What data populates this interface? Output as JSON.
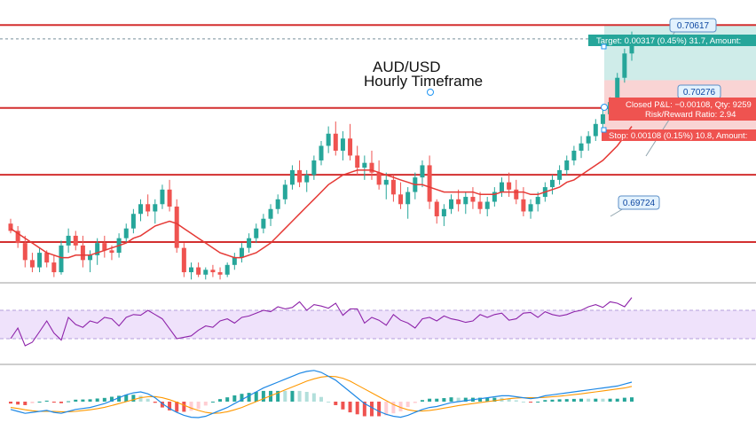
{
  "chart_data": [
    {
      "type": "candlestick",
      "title_line1": "AUD/USD",
      "title_line2": "Hourly Timeframe",
      "colors": {
        "up": "#26a69a",
        "down": "#ef5350",
        "sma": "#e53935",
        "level": "#d32f2f",
        "target_zone": "#bfe6e1",
        "stop_zone": "#f7c6c6"
      },
      "horizontal_levels": [
        0.70617,
        0.7056,
        0.70276,
        0.70001,
        0.69724
      ],
      "price_labels": [
        "0.70617",
        "0.70276",
        "0.69724"
      ],
      "position_tool": {
        "target_text": "Target: 0.00317 (0.45%) 31.7, Amount:",
        "closed_pl_text": "Closed P&L: −0.00108, Qty: 9259",
        "risk_reward_text": "Risk/Reward Ratio: 2.94",
        "stop_text": "Stop: 0.00108 (0.15%) 10.8, Amount:"
      },
      "candles": [
        [
          0.698,
          0.6982,
          0.6976,
          0.6977
        ],
        [
          0.6977,
          0.6979,
          0.697,
          0.6972
        ],
        [
          0.6972,
          0.6975,
          0.6962,
          0.6965
        ],
        [
          0.6965,
          0.6968,
          0.696,
          0.6962
        ],
        [
          0.6962,
          0.697,
          0.696,
          0.6968
        ],
        [
          0.6968,
          0.6969,
          0.6962,
          0.6964
        ],
        [
          0.6964,
          0.6967,
          0.6958,
          0.696
        ],
        [
          0.696,
          0.6973,
          0.6959,
          0.6971
        ],
        [
          0.6971,
          0.6978,
          0.6968,
          0.6975
        ],
        [
          0.6975,
          0.6977,
          0.6969,
          0.6971
        ],
        [
          0.6971,
          0.6975,
          0.6962,
          0.6965
        ],
        [
          0.6965,
          0.6969,
          0.696,
          0.6967
        ],
        [
          0.6967,
          0.6974,
          0.6963,
          0.6972
        ],
        [
          0.6972,
          0.6975,
          0.6966,
          0.6969
        ],
        [
          0.6969,
          0.6971,
          0.6965,
          0.6968
        ],
        [
          0.6968,
          0.6976,
          0.6966,
          0.6974
        ],
        [
          0.6974,
          0.698,
          0.6972,
          0.6978
        ],
        [
          0.6978,
          0.6986,
          0.6976,
          0.6984
        ],
        [
          0.6984,
          0.699,
          0.6981,
          0.6988
        ],
        [
          0.6988,
          0.6992,
          0.6983,
          0.6985
        ],
        [
          0.6985,
          0.699,
          0.698,
          0.6988
        ],
        [
          0.6988,
          0.6996,
          0.6986,
          0.6994
        ],
        [
          0.6994,
          0.6998,
          0.6985,
          0.6987
        ],
        [
          0.6987,
          0.699,
          0.6968,
          0.697
        ],
        [
          0.697,
          0.6972,
          0.6958,
          0.696
        ],
        [
          0.696,
          0.6964,
          0.6957,
          0.6962
        ],
        [
          0.6962,
          0.6964,
          0.6958,
          0.6959
        ],
        [
          0.6959,
          0.6962,
          0.6957,
          0.6961
        ],
        [
          0.6961,
          0.6963,
          0.6958,
          0.696
        ],
        [
          0.696,
          0.6962,
          0.6957,
          0.6959
        ],
        [
          0.6959,
          0.6964,
          0.6958,
          0.6963
        ],
        [
          0.6963,
          0.6968,
          0.6961,
          0.6966
        ],
        [
          0.6966,
          0.6972,
          0.6964,
          0.697
        ],
        [
          0.697,
          0.6976,
          0.6968,
          0.6974
        ],
        [
          0.6974,
          0.698,
          0.6972,
          0.6978
        ],
        [
          0.6978,
          0.6984,
          0.6976,
          0.6982
        ],
        [
          0.6982,
          0.6988,
          0.6979,
          0.6986
        ],
        [
          0.6986,
          0.6992,
          0.6984,
          0.699
        ],
        [
          0.699,
          0.6998,
          0.6988,
          0.6996
        ],
        [
          0.6996,
          0.7004,
          0.6994,
          0.7002
        ],
        [
          0.7002,
          0.7006,
          0.6995,
          0.6997
        ],
        [
          0.6997,
          0.7002,
          0.6993,
          0.7
        ],
        [
          0.7,
          0.7008,
          0.6998,
          0.7006
        ],
        [
          0.7006,
          0.7014,
          0.7004,
          0.7012
        ],
        [
          0.7012,
          0.702,
          0.7009,
          0.7017
        ],
        [
          0.7017,
          0.7022,
          0.7008,
          0.701
        ],
        [
          0.701,
          0.7018,
          0.7006,
          0.7015
        ],
        [
          0.7015,
          0.7021,
          0.7006,
          0.7008
        ],
        [
          0.7008,
          0.7012,
          0.7,
          0.7003
        ],
        [
          0.7003,
          0.7008,
          0.6998,
          0.7005
        ],
        [
          0.7005,
          0.701,
          0.6998,
          0.7001
        ],
        [
          0.7001,
          0.7006,
          0.6994,
          0.6996
        ],
        [
          0.6996,
          0.7001,
          0.699,
          0.6998
        ],
        [
          0.6998,
          0.7,
          0.6989,
          0.6992
        ],
        [
          0.6992,
          0.6997,
          0.6986,
          0.6988
        ],
        [
          0.6988,
          0.6995,
          0.6982,
          0.6993
        ],
        [
          0.6993,
          0.7001,
          0.699,
          0.6999
        ],
        [
          0.6999,
          0.7006,
          0.6995,
          0.7004
        ],
        [
          0.7004,
          0.7008,
          0.6986,
          0.6989
        ],
        [
          0.6989,
          0.699,
          0.698,
          0.6983
        ],
        [
          0.6983,
          0.6988,
          0.6979,
          0.6986
        ],
        [
          0.6986,
          0.6992,
          0.6984,
          0.699
        ],
        [
          0.699,
          0.6994,
          0.6985,
          0.6988
        ],
        [
          0.6988,
          0.6993,
          0.6984,
          0.6991
        ],
        [
          0.6991,
          0.6995,
          0.6986,
          0.6989
        ],
        [
          0.6989,
          0.6993,
          0.6984,
          0.6986
        ],
        [
          0.6986,
          0.6991,
          0.6983,
          0.6989
        ],
        [
          0.6989,
          0.6995,
          0.6987,
          0.6993
        ],
        [
          0.6993,
          0.6999,
          0.6991,
          0.6997
        ],
        [
          0.6997,
          0.7001,
          0.6991,
          0.6994
        ],
        [
          0.6994,
          0.6998,
          0.6988,
          0.699
        ],
        [
          0.699,
          0.6995,
          0.6983,
          0.6985
        ],
        [
          0.6985,
          0.699,
          0.6982,
          0.6988
        ],
        [
          0.6988,
          0.6993,
          0.6985,
          0.6991
        ],
        [
          0.6991,
          0.6997,
          0.6989,
          0.6995
        ],
        [
          0.6995,
          0.7,
          0.6992,
          0.6998
        ],
        [
          0.6998,
          0.7004,
          0.6996,
          0.7002
        ],
        [
          0.7002,
          0.7008,
          0.7,
          0.7006
        ],
        [
          0.7006,
          0.7012,
          0.7004,
          0.701
        ],
        [
          0.701,
          0.7016,
          0.7007,
          0.7013
        ],
        [
          0.7013,
          0.7018,
          0.701,
          0.7016
        ],
        [
          0.7016,
          0.7023,
          0.7014,
          0.7021
        ],
        [
          0.7021,
          0.7027,
          0.7019,
          0.7025
        ],
        [
          0.7025,
          0.7032,
          0.7023,
          0.703
        ],
        [
          0.703,
          0.7042,
          0.7028,
          0.704
        ],
        [
          0.704,
          0.7052,
          0.7038,
          0.705
        ],
        [
          0.705,
          0.7059,
          0.7047,
          0.7057
        ]
      ],
      "sma_label": "",
      "sma": [
        0.6978,
        0.6976,
        0.6974,
        0.6972,
        0.697,
        0.6968,
        0.6967,
        0.6966,
        0.6966,
        0.6967,
        0.6967,
        0.6967,
        0.6968,
        0.6969,
        0.697,
        0.6971,
        0.6972,
        0.6974,
        0.6975,
        0.6977,
        0.6979,
        0.698,
        0.6981,
        0.698,
        0.6978,
        0.6976,
        0.6974,
        0.6972,
        0.697,
        0.6968,
        0.6967,
        0.6966,
        0.6966,
        0.6967,
        0.6968,
        0.697,
        0.6972,
        0.6975,
        0.6978,
        0.6981,
        0.6984,
        0.6987,
        0.699,
        0.6993,
        0.6996,
        0.6998,
        0.7,
        0.7001,
        0.7002,
        0.7002,
        0.7002,
        0.7001,
        0.7,
        0.6999,
        0.6998,
        0.6997,
        0.6996,
        0.6996,
        0.6995,
        0.6994,
        0.6993,
        0.6993,
        0.6993,
        0.6993,
        0.6993,
        0.6992,
        0.6992,
        0.6992,
        0.6993,
        0.6993,
        0.6993,
        0.6993,
        0.6992,
        0.6992,
        0.6993,
        0.6994,
        0.6995,
        0.6997,
        0.6998,
        0.7,
        0.7002,
        0.7004,
        0.7006,
        0.7009,
        0.7012,
        0.7016,
        0.702
      ]
    },
    {
      "type": "line",
      "ylim": [
        0,
        100
      ],
      "bands": [
        30,
        70
      ],
      "rsi": [
        30,
        45,
        20,
        25,
        40,
        55,
        38,
        28,
        60,
        50,
        46,
        55,
        52,
        60,
        58,
        48,
        60,
        64,
        63,
        70,
        64,
        58,
        44,
        30,
        32,
        34,
        42,
        48,
        46,
        55,
        58,
        52,
        60,
        62,
        66,
        70,
        68,
        75,
        72,
        74,
        82,
        70,
        78,
        76,
        73,
        80,
        63,
        72,
        72,
        52,
        60,
        56,
        49,
        64,
        56,
        52,
        45,
        58,
        60,
        55,
        62,
        58,
        56,
        53,
        55,
        64,
        60,
        64,
        66,
        56,
        58,
        66,
        67,
        60,
        68,
        64,
        62,
        64,
        68,
        70,
        75,
        78,
        74,
        82,
        80,
        75,
        88
      ]
    },
    {
      "type": "line",
      "macd": [
        -0.4,
        -0.5,
        -0.6,
        -0.55,
        -0.5,
        -0.45,
        -0.55,
        -0.6,
        -0.5,
        -0.4,
        -0.35,
        -0.3,
        -0.2,
        -0.1,
        0.05,
        0.2,
        0.35,
        0.45,
        0.5,
        0.4,
        0.2,
        -0.1,
        -0.35,
        -0.55,
        -0.7,
        -0.8,
        -0.82,
        -0.75,
        -0.6,
        -0.45,
        -0.3,
        -0.1,
        0.1,
        0.3,
        0.5,
        0.7,
        0.85,
        1.0,
        1.15,
        1.3,
        1.45,
        1.55,
        1.6,
        1.5,
        1.3,
        1.1,
        0.8,
        0.5,
        0.2,
        -0.1,
        -0.3,
        -0.5,
        -0.65,
        -0.75,
        -0.8,
        -0.7,
        -0.55,
        -0.4,
        -0.3,
        -0.25,
        -0.15,
        -0.05,
        0.0,
        0.05,
        0.1,
        0.15,
        0.2,
        0.25,
        0.3,
        0.3,
        0.25,
        0.2,
        0.15,
        0.2,
        0.3,
        0.35,
        0.4,
        0.45,
        0.5,
        0.55,
        0.6,
        0.65,
        0.7,
        0.75,
        0.8,
        0.9,
        1.0
      ],
      "signal": [
        -0.3,
        -0.35,
        -0.42,
        -0.47,
        -0.5,
        -0.5,
        -0.5,
        -0.52,
        -0.52,
        -0.5,
        -0.46,
        -0.42,
        -0.36,
        -0.29,
        -0.2,
        -0.1,
        0.0,
        0.1,
        0.2,
        0.25,
        0.26,
        0.2,
        0.1,
        -0.03,
        -0.18,
        -0.33,
        -0.45,
        -0.55,
        -0.6,
        -0.58,
        -0.52,
        -0.42,
        -0.3,
        -0.15,
        0.0,
        0.15,
        0.3,
        0.45,
        0.6,
        0.75,
        0.9,
        1.05,
        1.17,
        1.26,
        1.3,
        1.28,
        1.2,
        1.05,
        0.85,
        0.65,
        0.45,
        0.25,
        0.05,
        -0.15,
        -0.3,
        -0.42,
        -0.48,
        -0.48,
        -0.45,
        -0.4,
        -0.33,
        -0.27,
        -0.2,
        -0.15,
        -0.1,
        -0.05,
        0.0,
        0.05,
        0.1,
        0.15,
        0.18,
        0.2,
        0.2,
        0.2,
        0.22,
        0.25,
        0.28,
        0.32,
        0.36,
        0.4,
        0.45,
        0.5,
        0.55,
        0.6,
        0.65,
        0.7,
        0.78
      ]
    }
  ]
}
